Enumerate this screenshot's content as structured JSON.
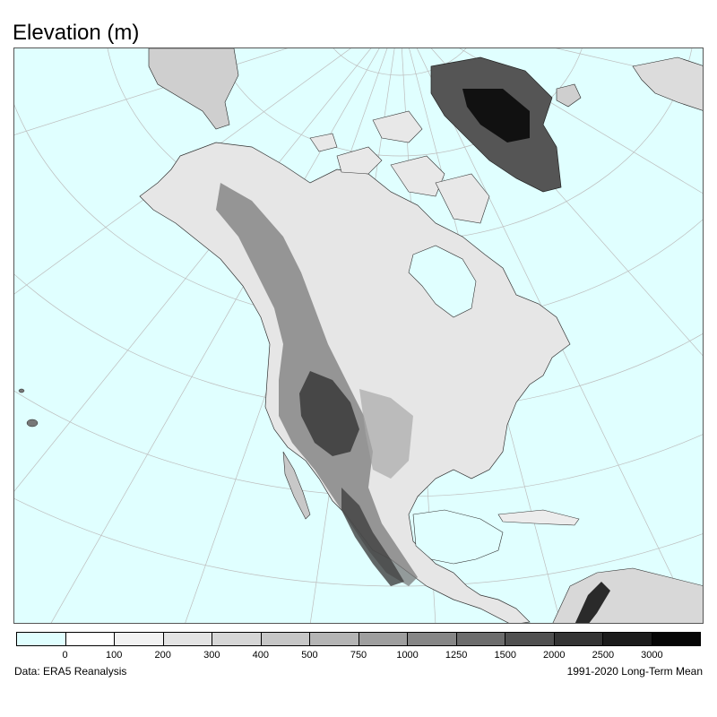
{
  "title": "Elevation (m)",
  "footer": {
    "source": "Data: ERA5 Reanalysis",
    "period": "1991-2020 Long-Term Mean"
  },
  "colorbar": {
    "colors": [
      "#e0ffff",
      "#ffffff",
      "#f2f2f2",
      "#e4e4e4",
      "#d6d6d6",
      "#c6c6c6",
      "#b4b4b4",
      "#9e9e9e",
      "#868686",
      "#6c6c6c",
      "#505050",
      "#343434",
      "#1c1c1c",
      "#060606"
    ],
    "ticks": [
      "0",
      "100",
      "200",
      "300",
      "400",
      "500",
      "750",
      "1000",
      "1250",
      "1500",
      "2000",
      "2500",
      "3000"
    ]
  }
}
